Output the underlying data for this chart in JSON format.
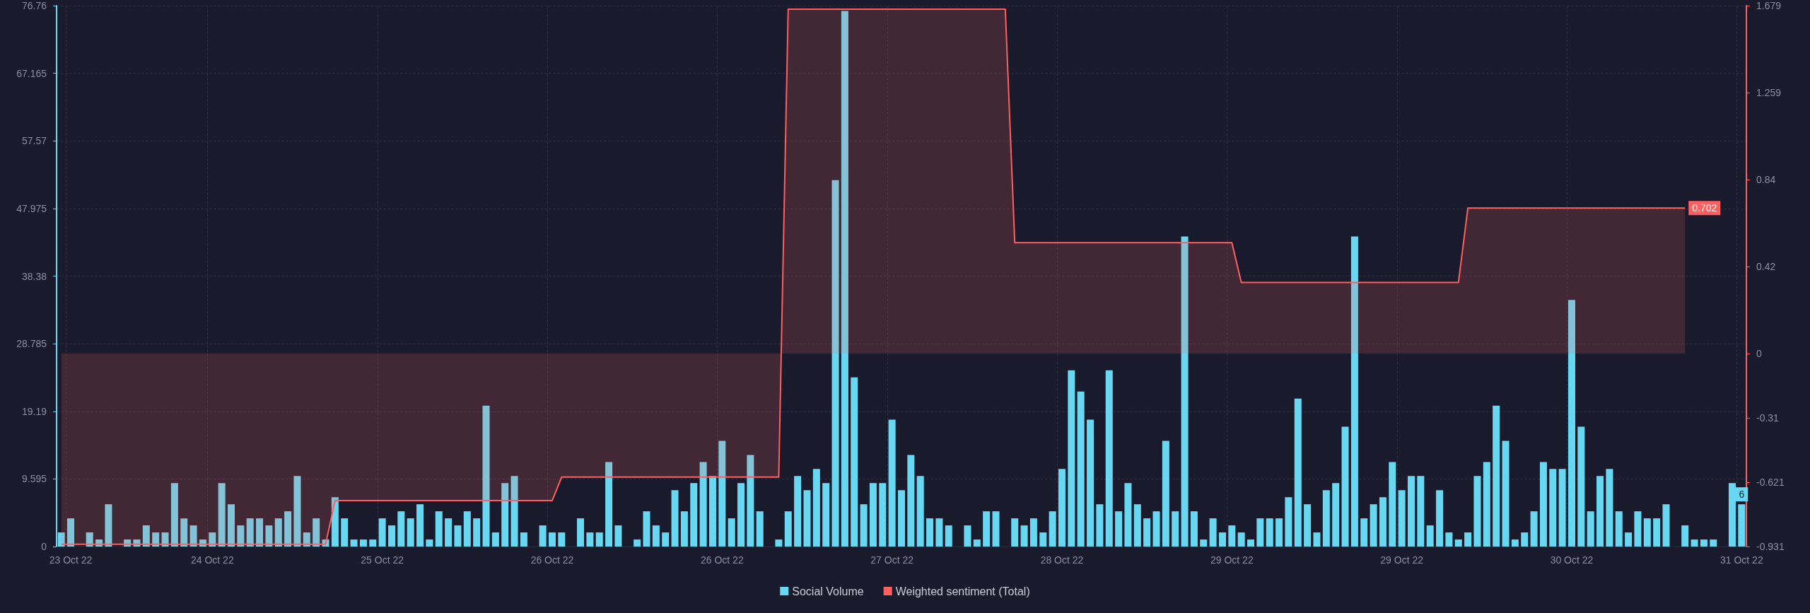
{
  "chart_data": {
    "type": "bar",
    "categories": [
      null,
      "23 Oct 22",
      null,
      null,
      null,
      null,
      null,
      null,
      null,
      null,
      null,
      null,
      null,
      null,
      null,
      null,
      "24 Oct 22",
      null,
      null,
      null,
      null,
      null,
      null,
      null,
      null,
      null,
      null,
      null,
      null,
      null,
      null,
      null,
      null,
      null,
      "25 Oct 22",
      null,
      null,
      null,
      null,
      null,
      null,
      null,
      null,
      null,
      null,
      null,
      null,
      null,
      null,
      null,
      null,
      null,
      "26 Oct 22",
      null,
      null,
      null,
      null,
      null,
      null,
      null,
      null,
      null,
      null,
      null,
      null,
      null,
      null,
      null,
      null,
      null,
      "26 Oct 22",
      null,
      null,
      null,
      null,
      null,
      null,
      null,
      null,
      null,
      null,
      null,
      null,
      null,
      null,
      null,
      null,
      null,
      "27 Oct 22",
      null,
      null,
      null,
      null,
      null,
      null,
      null,
      null,
      null,
      null,
      null,
      null,
      null,
      null,
      null,
      null,
      null,
      "28 Oct 22",
      null,
      null,
      null,
      null,
      null,
      null,
      null,
      null,
      null,
      null,
      null,
      null,
      null,
      null,
      null,
      null,
      null,
      "29 Oct 22",
      null,
      null,
      null,
      null,
      null,
      null,
      null,
      null,
      null,
      null,
      null,
      null,
      null,
      null,
      null,
      null,
      null,
      "29 Oct 22",
      null,
      null,
      null,
      null,
      null,
      null,
      null,
      null,
      null,
      null,
      null,
      null,
      null,
      null,
      null,
      null,
      null,
      "30 Oct 22",
      null,
      null,
      null,
      null,
      null,
      null,
      null,
      null,
      null,
      null,
      null,
      null,
      null,
      null,
      null,
      null,
      null,
      "31 Oct 22"
    ],
    "series": [
      {
        "name": "Social Volume",
        "color": "#68d8f2",
        "values": [
          2,
          4,
          0,
          2,
          1,
          6,
          0,
          1,
          1,
          3,
          2,
          2,
          9,
          4,
          3,
          1,
          2,
          9,
          6,
          3,
          4,
          4,
          3,
          4,
          5,
          10,
          2,
          4,
          1,
          7,
          4,
          1,
          1,
          1,
          4,
          3,
          5,
          4,
          6,
          1,
          5,
          4,
          3,
          5,
          4,
          20,
          2,
          9,
          10,
          2,
          0,
          3,
          2,
          2,
          0,
          4,
          2,
          2,
          12,
          3,
          0,
          1,
          5,
          3,
          2,
          8,
          5,
          9,
          12,
          10,
          15,
          4,
          9,
          13,
          5,
          0,
          1,
          5,
          10,
          8,
          11,
          9,
          52,
          76,
          24,
          6,
          9,
          9,
          18,
          8,
          13,
          10,
          4,
          4,
          3,
          0,
          3,
          1,
          5,
          5,
          0,
          4,
          3,
          4,
          2,
          5,
          11,
          25,
          22,
          18,
          6,
          25,
          5,
          9,
          6,
          4,
          5,
          15,
          5,
          44,
          5,
          1,
          4,
          2,
          3,
          2,
          1,
          4,
          4,
          4,
          7,
          21,
          6,
          2,
          8,
          9,
          17,
          44,
          4,
          6,
          7,
          12,
          8,
          10,
          10,
          3,
          8,
          2,
          1,
          2,
          10,
          12,
          20,
          15,
          1,
          2,
          5,
          12,
          11,
          11,
          35,
          17,
          5,
          10,
          11,
          5,
          2,
          5,
          4,
          4,
          6,
          0,
          3,
          1,
          1,
          1,
          0,
          9,
          6
        ],
        "value_labels": [
          null,
          null,
          null,
          null,
          null,
          null,
          null,
          null,
          null,
          null,
          null,
          null,
          null,
          null,
          null,
          null,
          null,
          null,
          null,
          null,
          null,
          null,
          null,
          null,
          null,
          null,
          null,
          null,
          null,
          null,
          null,
          null,
          null,
          null,
          null,
          null,
          null,
          null,
          null,
          null,
          null,
          null,
          null,
          null,
          null,
          null,
          null,
          null,
          null,
          null,
          null,
          null,
          null,
          null,
          null,
          null,
          null,
          null,
          null,
          null,
          null,
          null,
          null,
          null,
          null,
          null,
          null,
          null,
          null,
          null,
          null,
          null,
          null,
          null,
          null,
          null,
          null,
          null,
          null,
          null,
          null,
          null,
          null,
          null,
          null,
          null,
          null,
          null,
          null,
          null,
          null,
          null,
          null,
          null,
          null,
          null,
          null,
          null,
          null,
          null,
          null,
          null,
          null,
          null,
          null,
          null,
          null,
          null,
          null,
          null,
          null,
          null,
          null,
          null,
          null,
          null,
          null,
          null,
          null,
          null,
          null,
          null,
          null,
          null,
          null,
          null,
          null,
          null,
          null,
          null,
          null,
          null,
          null,
          null,
          null,
          null,
          null,
          null,
          null,
          null,
          null,
          null,
          null,
          null,
          null,
          null,
          null,
          null,
          null,
          null,
          null,
          null,
          null,
          null,
          null,
          null,
          null,
          null,
          null,
          null,
          null,
          null,
          null,
          null,
          null,
          null,
          null,
          null,
          null,
          null,
          null,
          null,
          null,
          null,
          null,
          null,
          null,
          null,
          "6"
        ]
      },
      {
        "name": "Weighted sentiment (Total)",
        "type": "area",
        "axis": "y2",
        "color": "#ff5f5f",
        "values": [
          -0.92,
          -0.92,
          -0.92,
          -0.92,
          -0.92,
          -0.92,
          -0.92,
          -0.92,
          -0.92,
          -0.92,
          -0.92,
          -0.92,
          -0.92,
          -0.92,
          -0.92,
          -0.92,
          -0.92,
          -0.92,
          -0.92,
          -0.92,
          -0.92,
          -0.92,
          -0.92,
          -0.92,
          -0.92,
          -0.92,
          -0.92,
          -0.92,
          -0.92,
          -0.709,
          -0.709,
          -0.709,
          -0.709,
          -0.709,
          -0.709,
          -0.709,
          -0.709,
          -0.709,
          -0.709,
          -0.709,
          -0.709,
          -0.709,
          -0.709,
          -0.709,
          -0.709,
          -0.709,
          -0.709,
          -0.709,
          -0.709,
          -0.709,
          -0.709,
          -0.709,
          -0.709,
          -0.596,
          -0.596,
          -0.596,
          -0.596,
          -0.596,
          -0.596,
          -0.596,
          -0.596,
          -0.596,
          -0.596,
          -0.596,
          -0.596,
          -0.596,
          -0.596,
          -0.596,
          -0.596,
          -0.596,
          -0.596,
          -0.596,
          -0.596,
          -0.596,
          -0.596,
          -0.596,
          -0.596,
          1.662,
          1.662,
          1.662,
          1.662,
          1.662,
          1.662,
          1.662,
          1.662,
          1.662,
          1.662,
          1.662,
          1.662,
          1.662,
          1.662,
          1.662,
          1.662,
          1.662,
          1.662,
          1.662,
          1.662,
          1.662,
          1.662,
          1.662,
          1.662,
          0.535,
          0.535,
          0.535,
          0.535,
          0.535,
          0.535,
          0.535,
          0.535,
          0.535,
          0.535,
          0.535,
          0.535,
          0.535,
          0.535,
          0.535,
          0.535,
          0.535,
          0.535,
          0.535,
          0.535,
          0.535,
          0.535,
          0.535,
          0.535,
          0.343,
          0.343,
          0.343,
          0.343,
          0.343,
          0.343,
          0.343,
          0.343,
          0.343,
          0.343,
          0.343,
          0.343,
          0.343,
          0.343,
          0.343,
          0.343,
          0.343,
          0.343,
          0.343,
          0.343,
          0.343,
          0.343,
          0.343,
          0.343,
          0.702,
          0.702,
          0.702,
          0.702,
          0.702,
          0.702,
          0.702,
          0.702,
          0.702,
          0.702,
          0.702,
          0.702,
          0.702,
          0.702,
          0.702,
          0.702,
          0.702,
          0.702,
          0.702,
          0.702,
          0.702,
          0.702,
          0.702,
          0.702,
          null,
          null,
          null,
          null,
          null,
          null
        ],
        "value_labels": [
          null,
          null,
          null,
          null,
          null,
          null,
          null,
          null,
          null,
          null,
          null,
          null,
          null,
          null,
          null,
          null,
          null,
          null,
          null,
          null,
          null,
          null,
          null,
          null,
          null,
          null,
          null,
          null,
          null,
          null,
          null,
          null,
          null,
          null,
          null,
          null,
          null,
          null,
          null,
          null,
          null,
          null,
          null,
          null,
          null,
          null,
          null,
          null,
          null,
          null,
          null,
          null,
          null,
          null,
          null,
          null,
          null,
          null,
          null,
          null,
          null,
          null,
          null,
          null,
          null,
          null,
          null,
          null,
          null,
          null,
          null,
          null,
          null,
          null,
          null,
          null,
          null,
          null,
          null,
          null,
          null,
          null,
          null,
          null,
          null,
          null,
          null,
          null,
          null,
          null,
          null,
          null,
          null,
          null,
          null,
          null,
          null,
          null,
          null,
          null,
          null,
          null,
          null,
          null,
          null,
          null,
          null,
          null,
          null,
          null,
          null,
          null,
          null,
          null,
          null,
          null,
          null,
          null,
          null,
          null,
          null,
          null,
          null,
          null,
          null,
          null,
          null,
          null,
          null,
          null,
          null,
          null,
          null,
          null,
          null,
          null,
          null,
          null,
          null,
          null,
          null,
          null,
          null,
          null,
          null,
          null,
          null,
          null,
          null,
          null,
          null,
          null,
          null,
          null,
          null,
          null,
          null,
          null,
          null,
          null,
          null,
          null,
          null,
          null,
          null,
          null,
          null,
          null,
          null,
          null,
          null,
          null,
          "0.702",
          null,
          null,
          null,
          null,
          null,
          null
        ]
      }
    ],
    "ylim": [
      0,
      76.76
    ],
    "yticks": [
      0,
      9.595,
      19.19,
      28.785,
      38.38,
      47.975,
      57.57,
      67.165,
      76.76
    ],
    "y2lim": [
      -0.931,
      1.679
    ],
    "y2ticks": [
      -0.931,
      -0.621,
      -0.31,
      0,
      0.42,
      0.84,
      1.259,
      1.679
    ],
    "grid": true,
    "legend": "bottom"
  }
}
